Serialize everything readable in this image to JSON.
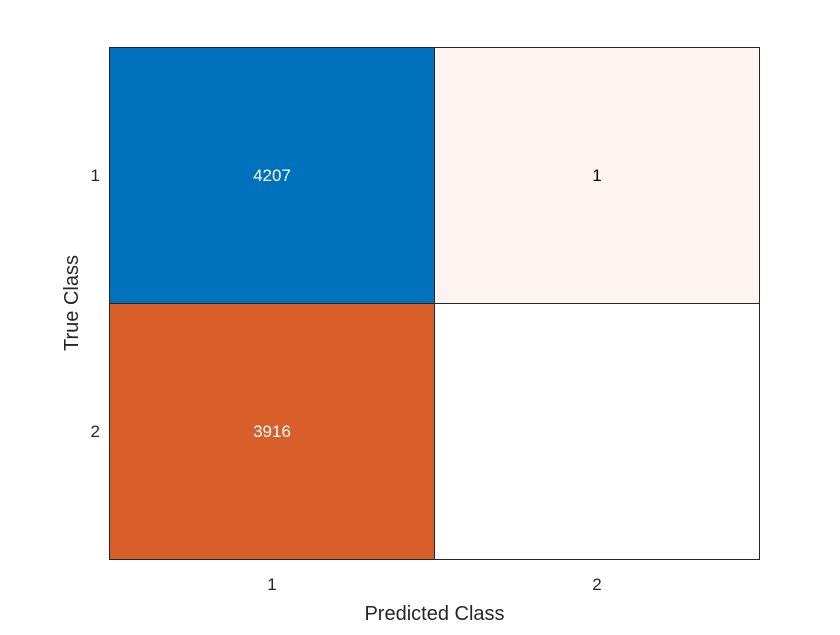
{
  "chart_data": {
    "type": "heatmap",
    "title": "",
    "xlabel": "Predicted Class",
    "ylabel": "True Class",
    "x_categories": [
      "1",
      "2"
    ],
    "y_categories": [
      "1",
      "2"
    ],
    "cells": [
      {
        "row": "1",
        "col": "1",
        "value": 4207,
        "label": "4207",
        "color": "#0072BD",
        "text_color": "#ffffff"
      },
      {
        "row": "1",
        "col": "2",
        "value": 1,
        "label": "1",
        "color": "#FDF4F1",
        "text_color": "#000000"
      },
      {
        "row": "2",
        "col": "1",
        "value": 3916,
        "label": "3916",
        "color": "#D95F2A",
        "text_color": "#ffffff"
      },
      {
        "row": "2",
        "col": "2",
        "value": 0,
        "label": "",
        "color": "#ffffff",
        "text_color": "#000000"
      }
    ],
    "grid": true,
    "legend": "none"
  }
}
